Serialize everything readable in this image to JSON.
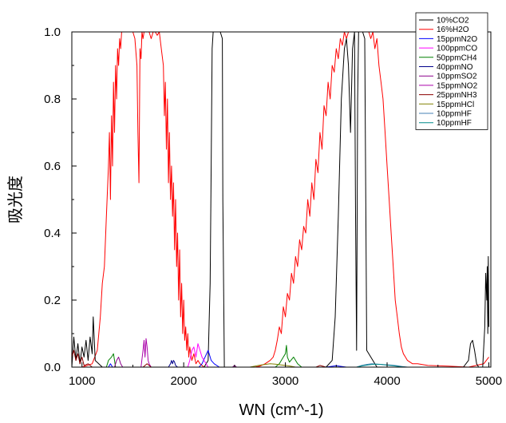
{
  "chart_data": {
    "type": "line",
    "xlabel": "WN (cm^-1)",
    "ylabel": "吸光度",
    "xlim": [
      900,
      5020
    ],
    "ylim": [
      0,
      1.0
    ],
    "x_ticks": [
      1000,
      2000,
      3000,
      4000,
      5000
    ],
    "y_ticks": [
      0.0,
      0.2,
      0.4,
      0.6,
      0.8,
      1.0
    ],
    "x_tick_labels": [
      "1000",
      "2000",
      "3000",
      "4000",
      "5000"
    ],
    "y_tick_labels": [
      "0.0",
      "0.2",
      "0.4",
      "0.6",
      "0.8",
      "1.0"
    ],
    "grid": false,
    "legend_position": "top-right",
    "series": [
      {
        "name": "10%CO2",
        "color": "#000000",
        "x": [
          900,
          920,
          940,
          960,
          980,
          1000,
          1020,
          1040,
          1060,
          1080,
          1100,
          1110,
          1130,
          1200,
          2200,
          2240,
          2260,
          2270,
          2280,
          2290,
          2300,
          2320,
          2360,
          2380,
          2385,
          2400,
          3400,
          3460,
          3490,
          3520,
          3550,
          3580,
          3600,
          3620,
          3640,
          3660,
          3680,
          3690,
          3700,
          3710,
          3720,
          3740,
          3760,
          3780,
          3790,
          3800,
          3900,
          4750,
          4800,
          4820,
          4840,
          4860,
          4880,
          4900,
          4940,
          4960,
          4970,
          4980,
          4985,
          4990,
          4995,
          5000
        ],
        "y": [
          0,
          0.09,
          0.02,
          0.07,
          0.01,
          0.06,
          0.03,
          0.08,
          0.02,
          0.09,
          0.04,
          0.15,
          0.02,
          0,
          0,
          0.02,
          0.25,
          0.6,
          0.95,
          1.0,
          1.0,
          1.0,
          1.0,
          0.98,
          0.5,
          0,
          0,
          0.02,
          0.15,
          0.45,
          0.8,
          0.95,
          0.98,
          0.9,
          0.7,
          0.95,
          1.0,
          0.45,
          0.05,
          0.8,
          1.0,
          1.0,
          1.0,
          0.98,
          0.5,
          0.05,
          0,
          0,
          0.02,
          0.07,
          0.08,
          0.05,
          0.01,
          0,
          0,
          0.12,
          0.28,
          0.2,
          0.3,
          0.1,
          0.33,
          0.12
        ]
      },
      {
        "name": "16%H2O",
        "color": "#ff0000",
        "x": [
          900,
          1000,
          1100,
          1150,
          1180,
          1200,
          1220,
          1240,
          1260,
          1270,
          1280,
          1290,
          1300,
          1310,
          1320,
          1330,
          1340,
          1350,
          1360,
          1370,
          1380,
          1390,
          1400,
          1420,
          1450,
          1480,
          1500,
          1520,
          1540,
          1550,
          1560,
          1570,
          1580,
          1590,
          1600,
          1610,
          1620,
          1640,
          1660,
          1680,
          1700,
          1720,
          1740,
          1760,
          1780,
          1800,
          1810,
          1820,
          1830,
          1840,
          1850,
          1860,
          1870,
          1880,
          1890,
          1900,
          1910,
          1920,
          1930,
          1940,
          1950,
          1960,
          1970,
          1980,
          1990,
          2000,
          2010,
          2020,
          2030,
          2040,
          2050,
          2060,
          2080,
          2100,
          2120,
          2140,
          2160,
          2200,
          2300,
          2700,
          2750,
          2800,
          2850,
          2880,
          2900,
          2920,
          2940,
          2960,
          2980,
          3000,
          3020,
          3040,
          3060,
          3080,
          3100,
          3120,
          3140,
          3160,
          3180,
          3200,
          3220,
          3240,
          3260,
          3280,
          3300,
          3320,
          3340,
          3360,
          3380,
          3400,
          3420,
          3440,
          3460,
          3480,
          3500,
          3520,
          3540,
          3560,
          3580,
          3600,
          3620,
          3640,
          3660,
          3700,
          3740,
          3780,
          3820,
          3840,
          3860,
          3880,
          3900,
          3920,
          3940,
          3960,
          3980,
          4000,
          4020,
          4040,
          4060,
          4080,
          4100,
          4120,
          4140,
          4160,
          4180,
          4200,
          4250,
          4300,
          4400,
          4600,
          4800,
          4950,
          5000
        ],
        "y": [
          0,
          0,
          0.01,
          0.05,
          0.15,
          0.25,
          0.3,
          0.45,
          0.6,
          0.7,
          0.5,
          0.75,
          0.6,
          0.85,
          0.7,
          0.9,
          0.8,
          0.95,
          0.9,
          0.98,
          0.95,
          1.0,
          1.0,
          1.0,
          1.0,
          1.0,
          1.0,
          0.98,
          0.9,
          0.7,
          0.55,
          0.95,
          0.92,
          1.0,
          0.98,
          1.0,
          1.0,
          1.0,
          1.0,
          0.98,
          1.0,
          1.0,
          0.99,
          1.0,
          0.95,
          0.9,
          0.75,
          0.85,
          0.65,
          0.8,
          0.55,
          0.7,
          0.5,
          0.6,
          0.45,
          0.55,
          0.35,
          0.5,
          0.3,
          0.4,
          0.2,
          0.35,
          0.15,
          0.25,
          0.1,
          0.2,
          0.08,
          0.12,
          0.05,
          0.1,
          0.03,
          0.06,
          0.02,
          0.04,
          0.01,
          0.02,
          0.01,
          0,
          0,
          0,
          0.003,
          0.01,
          0.02,
          0.03,
          0.05,
          0.08,
          0.12,
          0.1,
          0.18,
          0.15,
          0.22,
          0.2,
          0.28,
          0.25,
          0.33,
          0.3,
          0.38,
          0.35,
          0.42,
          0.4,
          0.5,
          0.45,
          0.55,
          0.5,
          0.62,
          0.58,
          0.7,
          0.65,
          0.78,
          0.75,
          0.85,
          0.8,
          0.9,
          0.88,
          0.95,
          0.92,
          0.98,
          0.96,
          1.0,
          0.98,
          1.0,
          1.0,
          1.0,
          1.0,
          1.0,
          1.0,
          1.0,
          0.98,
          1.0,
          0.95,
          0.98,
          0.9,
          0.85,
          0.8,
          0.7,
          0.6,
          0.5,
          0.4,
          0.3,
          0.2,
          0.15,
          0.1,
          0.06,
          0.04,
          0.03,
          0.02,
          0.01,
          0.01,
          0.005,
          0.003,
          0,
          0.01,
          0.03
        ]
      },
      {
        "name": "15ppmN2O",
        "color": "#0000ff",
        "x": [
          900,
          1260,
          1280,
          1300,
          2150,
          2180,
          2210,
          2240,
          2270,
          2300,
          2350,
          3400,
          3500,
          3600,
          5000
        ],
        "y": [
          0,
          0,
          0.01,
          0,
          0,
          0.01,
          0.03,
          0.05,
          0.02,
          0.01,
          0,
          0,
          0.004,
          0,
          0
        ]
      },
      {
        "name": "100ppmCO",
        "color": "#ff00ff",
        "x": [
          900,
          2040,
          2060,
          2080,
          2100,
          2120,
          2140,
          2160,
          2180,
          2200,
          2220,
          2240,
          5000
        ],
        "y": [
          0,
          0,
          0.02,
          0.05,
          0.06,
          0.03,
          0.07,
          0.05,
          0.03,
          0.02,
          0.01,
          0,
          0
        ]
      },
      {
        "name": "50ppmCH4",
        "color": "#008000",
        "x": [
          900,
          1240,
          1260,
          1290,
          1310,
          1330,
          2900,
          2940,
          2980,
          3000,
          3010,
          3020,
          3040,
          3080,
          3120,
          3160,
          5000
        ],
        "y": [
          0,
          0,
          0.02,
          0.03,
          0.04,
          0,
          0,
          0.01,
          0.03,
          0.04,
          0.065,
          0.03,
          0.015,
          0.03,
          0.01,
          0,
          0
        ]
      },
      {
        "name": "40ppmNO",
        "color": "#00008b",
        "x": [
          900,
          1850,
          1870,
          1880,
          1890,
          1900,
          1910,
          1920,
          1940,
          5000
        ],
        "y": [
          0,
          0,
          0.01,
          0.02,
          0.01,
          0.02,
          0.015,
          0.005,
          0,
          0
        ]
      },
      {
        "name": "10ppmSO2",
        "color": "#8b008b",
        "x": [
          900,
          1320,
          1340,
          1360,
          1380,
          1400,
          2480,
          2500,
          2520,
          5000
        ],
        "y": [
          0,
          0,
          0.02,
          0.03,
          0.01,
          0,
          0,
          0.005,
          0,
          0
        ]
      },
      {
        "name": "15ppmNO2",
        "color": "#aa00aa",
        "x": [
          900,
          1580,
          1600,
          1610,
          1620,
          1630,
          1640,
          1650,
          1660,
          1680,
          5000
        ],
        "y": [
          0,
          0,
          0.05,
          0.08,
          0.03,
          0.085,
          0.06,
          0.02,
          0.01,
          0,
          0
        ]
      },
      {
        "name": "25ppmNH3",
        "color": "#8b0000",
        "x": [
          900,
          920,
          940,
          960,
          980,
          1000,
          1020,
          1060,
          1100,
          1600,
          1640,
          1680,
          3300,
          3340,
          3400,
          5000
        ],
        "y": [
          0.03,
          0.05,
          0.02,
          0.04,
          0.01,
          0.03,
          0.005,
          0.01,
          0,
          0,
          0.01,
          0,
          0,
          0.005,
          0,
          0
        ]
      },
      {
        "name": "15ppmHCl",
        "color": "#808000",
        "x": [
          900,
          2650,
          2700,
          2750,
          2800,
          2850,
          2900,
          2950,
          3000,
          3050,
          3100,
          5000
        ],
        "y": [
          0,
          0,
          0.003,
          0.006,
          0.008,
          0.01,
          0.009,
          0.007,
          0.005,
          0.003,
          0,
          0
        ]
      },
      {
        "name": "10ppmHF",
        "color": "#4682b4",
        "x": [
          900,
          3700,
          3750,
          3800,
          3850,
          3900,
          3950,
          4000,
          4050,
          4100,
          4150,
          4200,
          5000
        ],
        "y": [
          0,
          0,
          0.005,
          0.008,
          0.01,
          0.009,
          0.008,
          0.007,
          0.006,
          0.004,
          0.002,
          0,
          0
        ]
      },
      {
        "name": "10ppmHF",
        "color": "#008b8b",
        "x": [
          900,
          3700,
          3760,
          3820,
          3880,
          3940,
          4000,
          4060,
          4120,
          4180,
          5000
        ],
        "y": [
          0,
          0,
          0.004,
          0.007,
          0.009,
          0.008,
          0.006,
          0.004,
          0.002,
          0,
          0
        ]
      }
    ]
  }
}
